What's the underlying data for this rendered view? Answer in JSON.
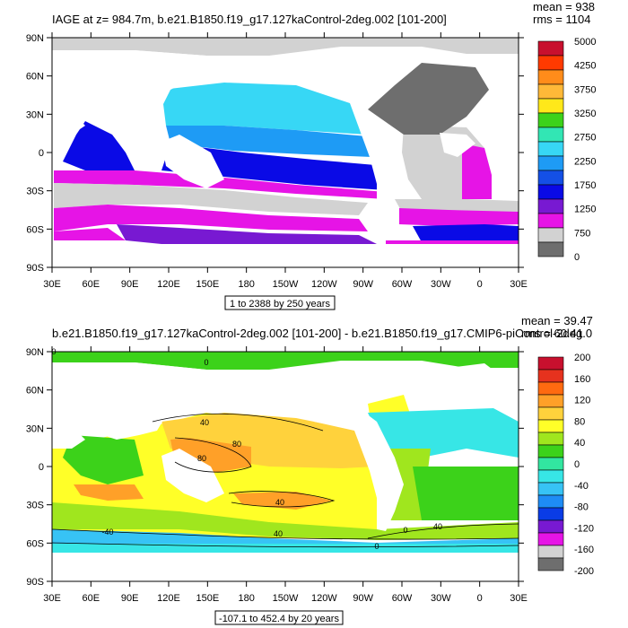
{
  "panels": [
    {
      "title": "IAGE at z= 984.7m, b.e21.B1850.f19_g17.127kaControl-2deg.002 [101-200]",
      "stats": [
        "mean = 938",
        "rms = 1104"
      ],
      "y_ticks": [
        "90N",
        "60N",
        "30N",
        "0",
        "30S",
        "60S",
        "90S"
      ],
      "x_ticks": [
        "30E",
        "60E",
        "90E",
        "120E",
        "150E",
        "180",
        "150W",
        "120W",
        "90W",
        "60W",
        "30W",
        "0",
        "30E"
      ],
      "info_box": "1 to 2388 by 250 years",
      "colorbar": {
        "labels": [
          "5000",
          "4250",
          "3750",
          "3250",
          "2750",
          "2250",
          "1750",
          "1250",
          "750",
          "0"
        ],
        "colors": [
          "#c8102e",
          "#ff3a00",
          "#ff8c1a",
          "#ffb938",
          "#ffe81a",
          "#3cd21a",
          "#32e6b4",
          "#37d7f5",
          "#1e9bf5",
          "#1450e6",
          "#0a0ae6",
          "#7819d2",
          "#e614e6",
          "#d2d2d2",
          "#6e6e6e"
        ]
      },
      "contour_labels": []
    },
    {
      "title": "b.e21.B1850.f19_g17.127kaControl-2deg.002 [101-200] - b.e21.B1850.f19_g17.CMIP6-piControl-2deg.0",
      "stats": [
        "mean = 39.47",
        "rms = 60.41"
      ],
      "y_ticks": [
        "90N",
        "60N",
        "30N",
        "0",
        "30S",
        "60S",
        "90S"
      ],
      "x_ticks": [
        "30E",
        "60E",
        "90E",
        "120E",
        "150E",
        "180",
        "150W",
        "120W",
        "90W",
        "60W",
        "30W",
        "0",
        "30E"
      ],
      "info_box": "-107.1 to 452.4 by 20 years",
      "colorbar": {
        "labels": [
          "200",
          "160",
          "120",
          "80",
          "40",
          "0",
          "-40",
          "-80",
          "-120",
          "-160",
          "-200"
        ],
        "colors": [
          "#c8102e",
          "#e6321e",
          "#ff6a10",
          "#ffa028",
          "#ffd23c",
          "#ffff28",
          "#a0e61e",
          "#3cd21a",
          "#32e6a0",
          "#37e6e6",
          "#37c3f5",
          "#1e8cf5",
          "#0a3ce6",
          "#7819d2",
          "#e614e6",
          "#d2d2d2",
          "#6e6e6e"
        ]
      },
      "contour_labels": [
        "40",
        "80",
        "40",
        "80",
        "0",
        "40",
        "0",
        "40",
        "-40",
        "0",
        "0"
      ]
    }
  ]
}
